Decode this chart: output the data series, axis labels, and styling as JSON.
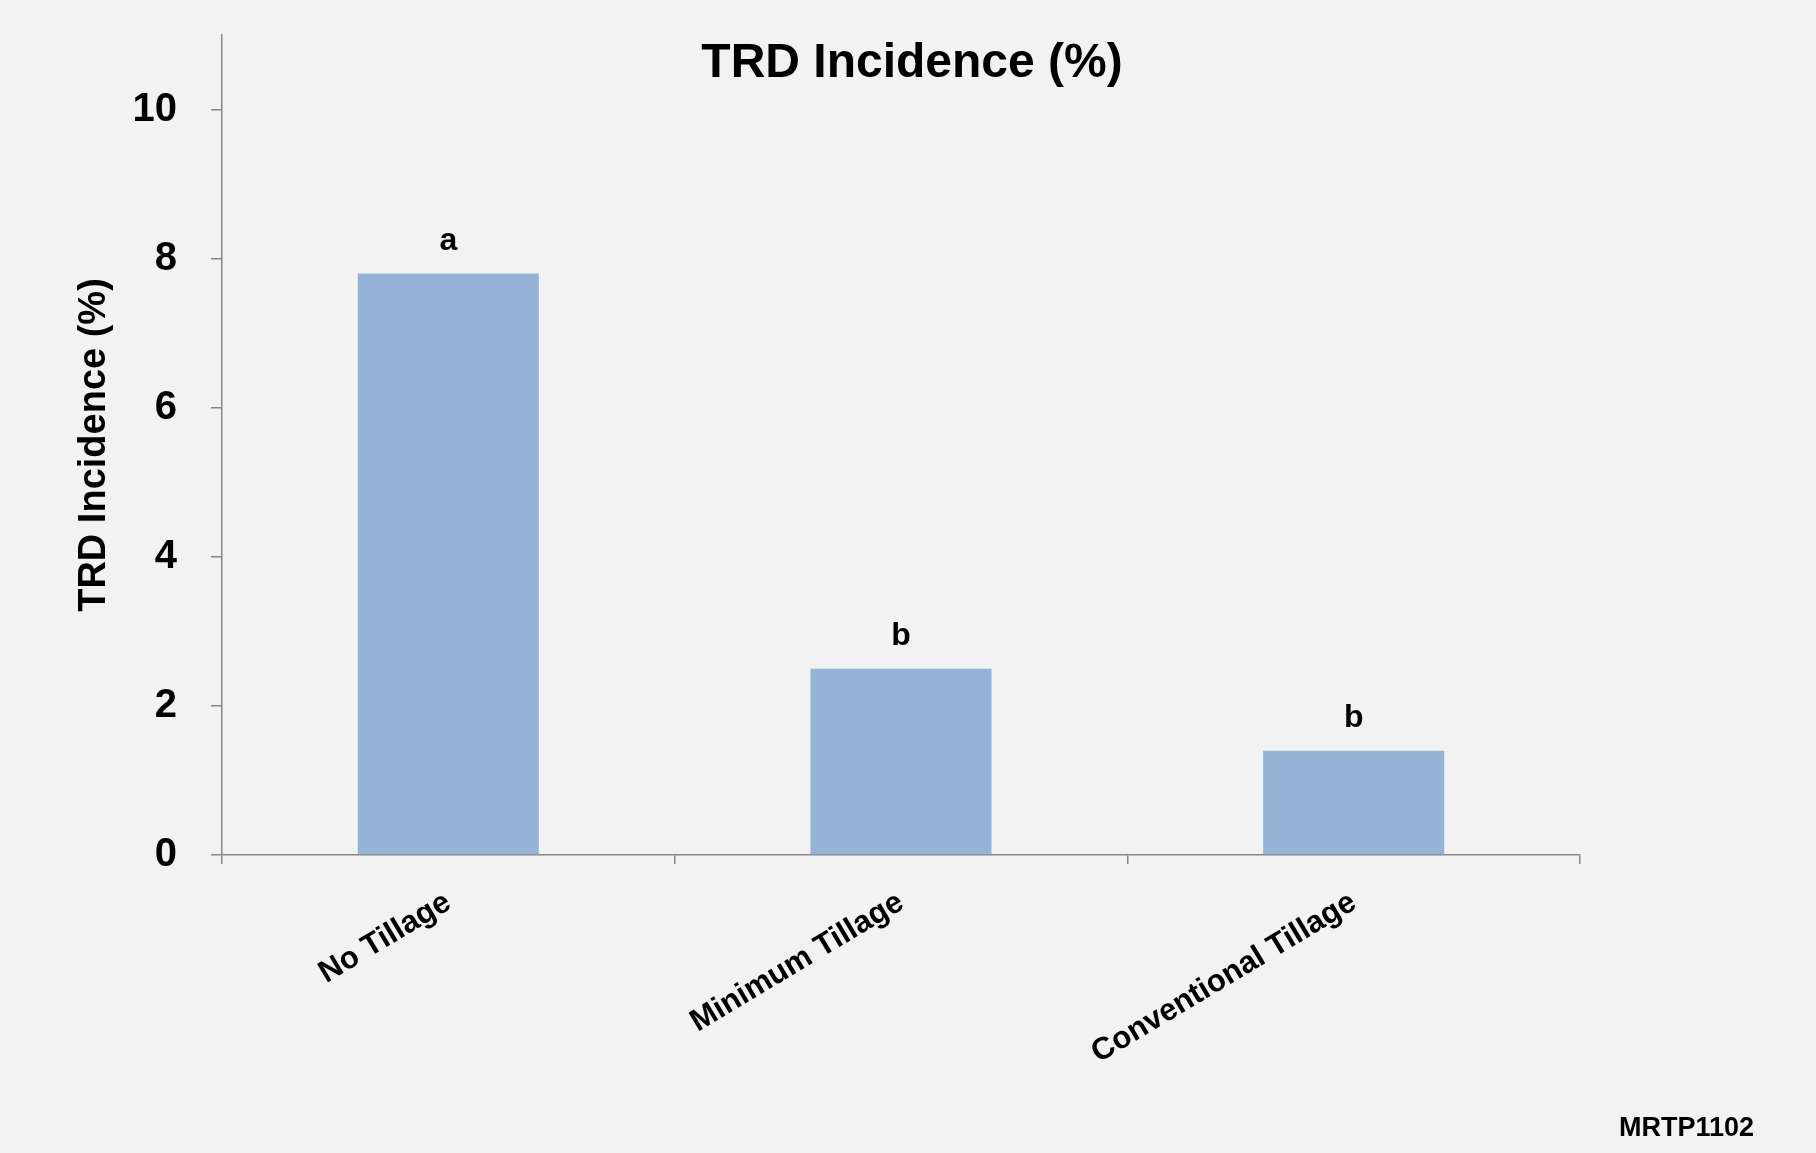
{
  "chart_data": {
    "type": "bar",
    "title": "TRD Incidence (%)",
    "ylabel": "TRD Incidence (%)",
    "categories": [
      "No Tillage",
      "Minimum Tillage",
      "Conventional Tillage"
    ],
    "values": [
      7.8,
      2.5,
      1.4
    ],
    "color": "#95b3d7",
    "ylim": [
      0,
      11
    ],
    "yticks": [
      0,
      2,
      4,
      6,
      8,
      10
    ],
    "annotations": [
      {
        "text": "a",
        "x": "No Tillage",
        "y": 7.8
      },
      {
        "text": "b",
        "x": "Minimum Tillage",
        "y": 2.5
      },
      {
        "text": "b",
        "x": "Conventional Tillage",
        "y": 1.4
      },
      "MRTP1102"
    ]
  }
}
